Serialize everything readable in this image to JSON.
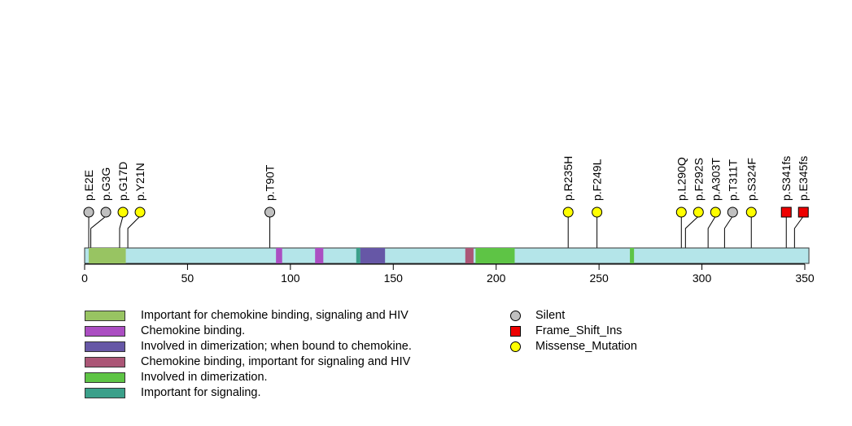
{
  "chart_data": {
    "type": "lollipop",
    "protein_length": 352,
    "x_ticks": [
      0,
      50,
      100,
      150,
      200,
      250,
      300,
      350
    ],
    "domains": [
      {
        "name": "Important for chemokine binding, signaling and HIV",
        "start": 2,
        "end": 20,
        "color": "#98c462"
      },
      {
        "name": "Chemokine binding.",
        "start": 93,
        "end": 96,
        "color": "#ab4ec2"
      },
      {
        "name": "Chemokine binding.",
        "start": 112,
        "end": 116,
        "color": "#ab4ec2"
      },
      {
        "name": "Important for signaling.",
        "start": 132,
        "end": 134,
        "color": "#3ba08a"
      },
      {
        "name": "Involved in dimerization; when bound to chemokine.",
        "start": 134,
        "end": 146,
        "color": "#6657a6"
      },
      {
        "name": "Chemokine binding, important for signaling and HIV",
        "start": 185,
        "end": 189,
        "color": "#ab5676"
      },
      {
        "name": "Involved in dimerization.",
        "start": 190,
        "end": 209,
        "color": "#5ec445"
      },
      {
        "name": "Involved in dimerization.",
        "start": 265,
        "end": 267,
        "color": "#5ec445"
      }
    ],
    "mutations": [
      {
        "label": "p.E2E",
        "position": 2,
        "type": "Silent"
      },
      {
        "label": "p.G3G",
        "position": 3,
        "type": "Silent"
      },
      {
        "label": "p.G17D",
        "position": 17,
        "type": "Missense_Mutation"
      },
      {
        "label": "p.Y21N",
        "position": 21,
        "type": "Missense_Mutation"
      },
      {
        "label": "p.T90T",
        "position": 90,
        "type": "Silent"
      },
      {
        "label": "p.R235H",
        "position": 235,
        "type": "Missense_Mutation"
      },
      {
        "label": "p.F249L",
        "position": 249,
        "type": "Missense_Mutation"
      },
      {
        "label": "p.L290Q",
        "position": 290,
        "type": "Missense_Mutation"
      },
      {
        "label": "p.F292S",
        "position": 292,
        "type": "Missense_Mutation"
      },
      {
        "label": "p.A303T",
        "position": 303,
        "type": "Missense_Mutation"
      },
      {
        "label": "p.T311T",
        "position": 311,
        "type": "Silent"
      },
      {
        "label": "p.S324F",
        "position": 324,
        "type": "Missense_Mutation"
      },
      {
        "label": "p.S341fs",
        "position": 341,
        "type": "Frame_Shift_Ins"
      },
      {
        "label": "p.E345fs",
        "position": 345,
        "type": "Frame_Shift_Ins"
      }
    ],
    "domain_legend": [
      {
        "label": "Important for chemokine binding, signaling and HIV",
        "color": "#98c462"
      },
      {
        "label": "Chemokine binding.",
        "color": "#ab4ec2"
      },
      {
        "label": "Involved in dimerization; when bound to chemokine.",
        "color": "#6657a6"
      },
      {
        "label": "Chemokine binding, important for signaling and HIV",
        "color": "#ab5676"
      },
      {
        "label": "Involved in dimerization.",
        "color": "#5ec445"
      },
      {
        "label": "Important for signaling.",
        "color": "#3ba08a"
      }
    ],
    "mutation_legend": [
      {
        "label": "Silent",
        "shape": "circle",
        "color": "#c0c0c0"
      },
      {
        "label": "Frame_Shift_Ins",
        "shape": "square",
        "color": "#ee0000"
      },
      {
        "label": "Missense_Mutation",
        "shape": "circle",
        "color": "#ffff00"
      }
    ],
    "colors": {
      "backbone": "#b4e5e9",
      "outline": "#333333"
    }
  }
}
